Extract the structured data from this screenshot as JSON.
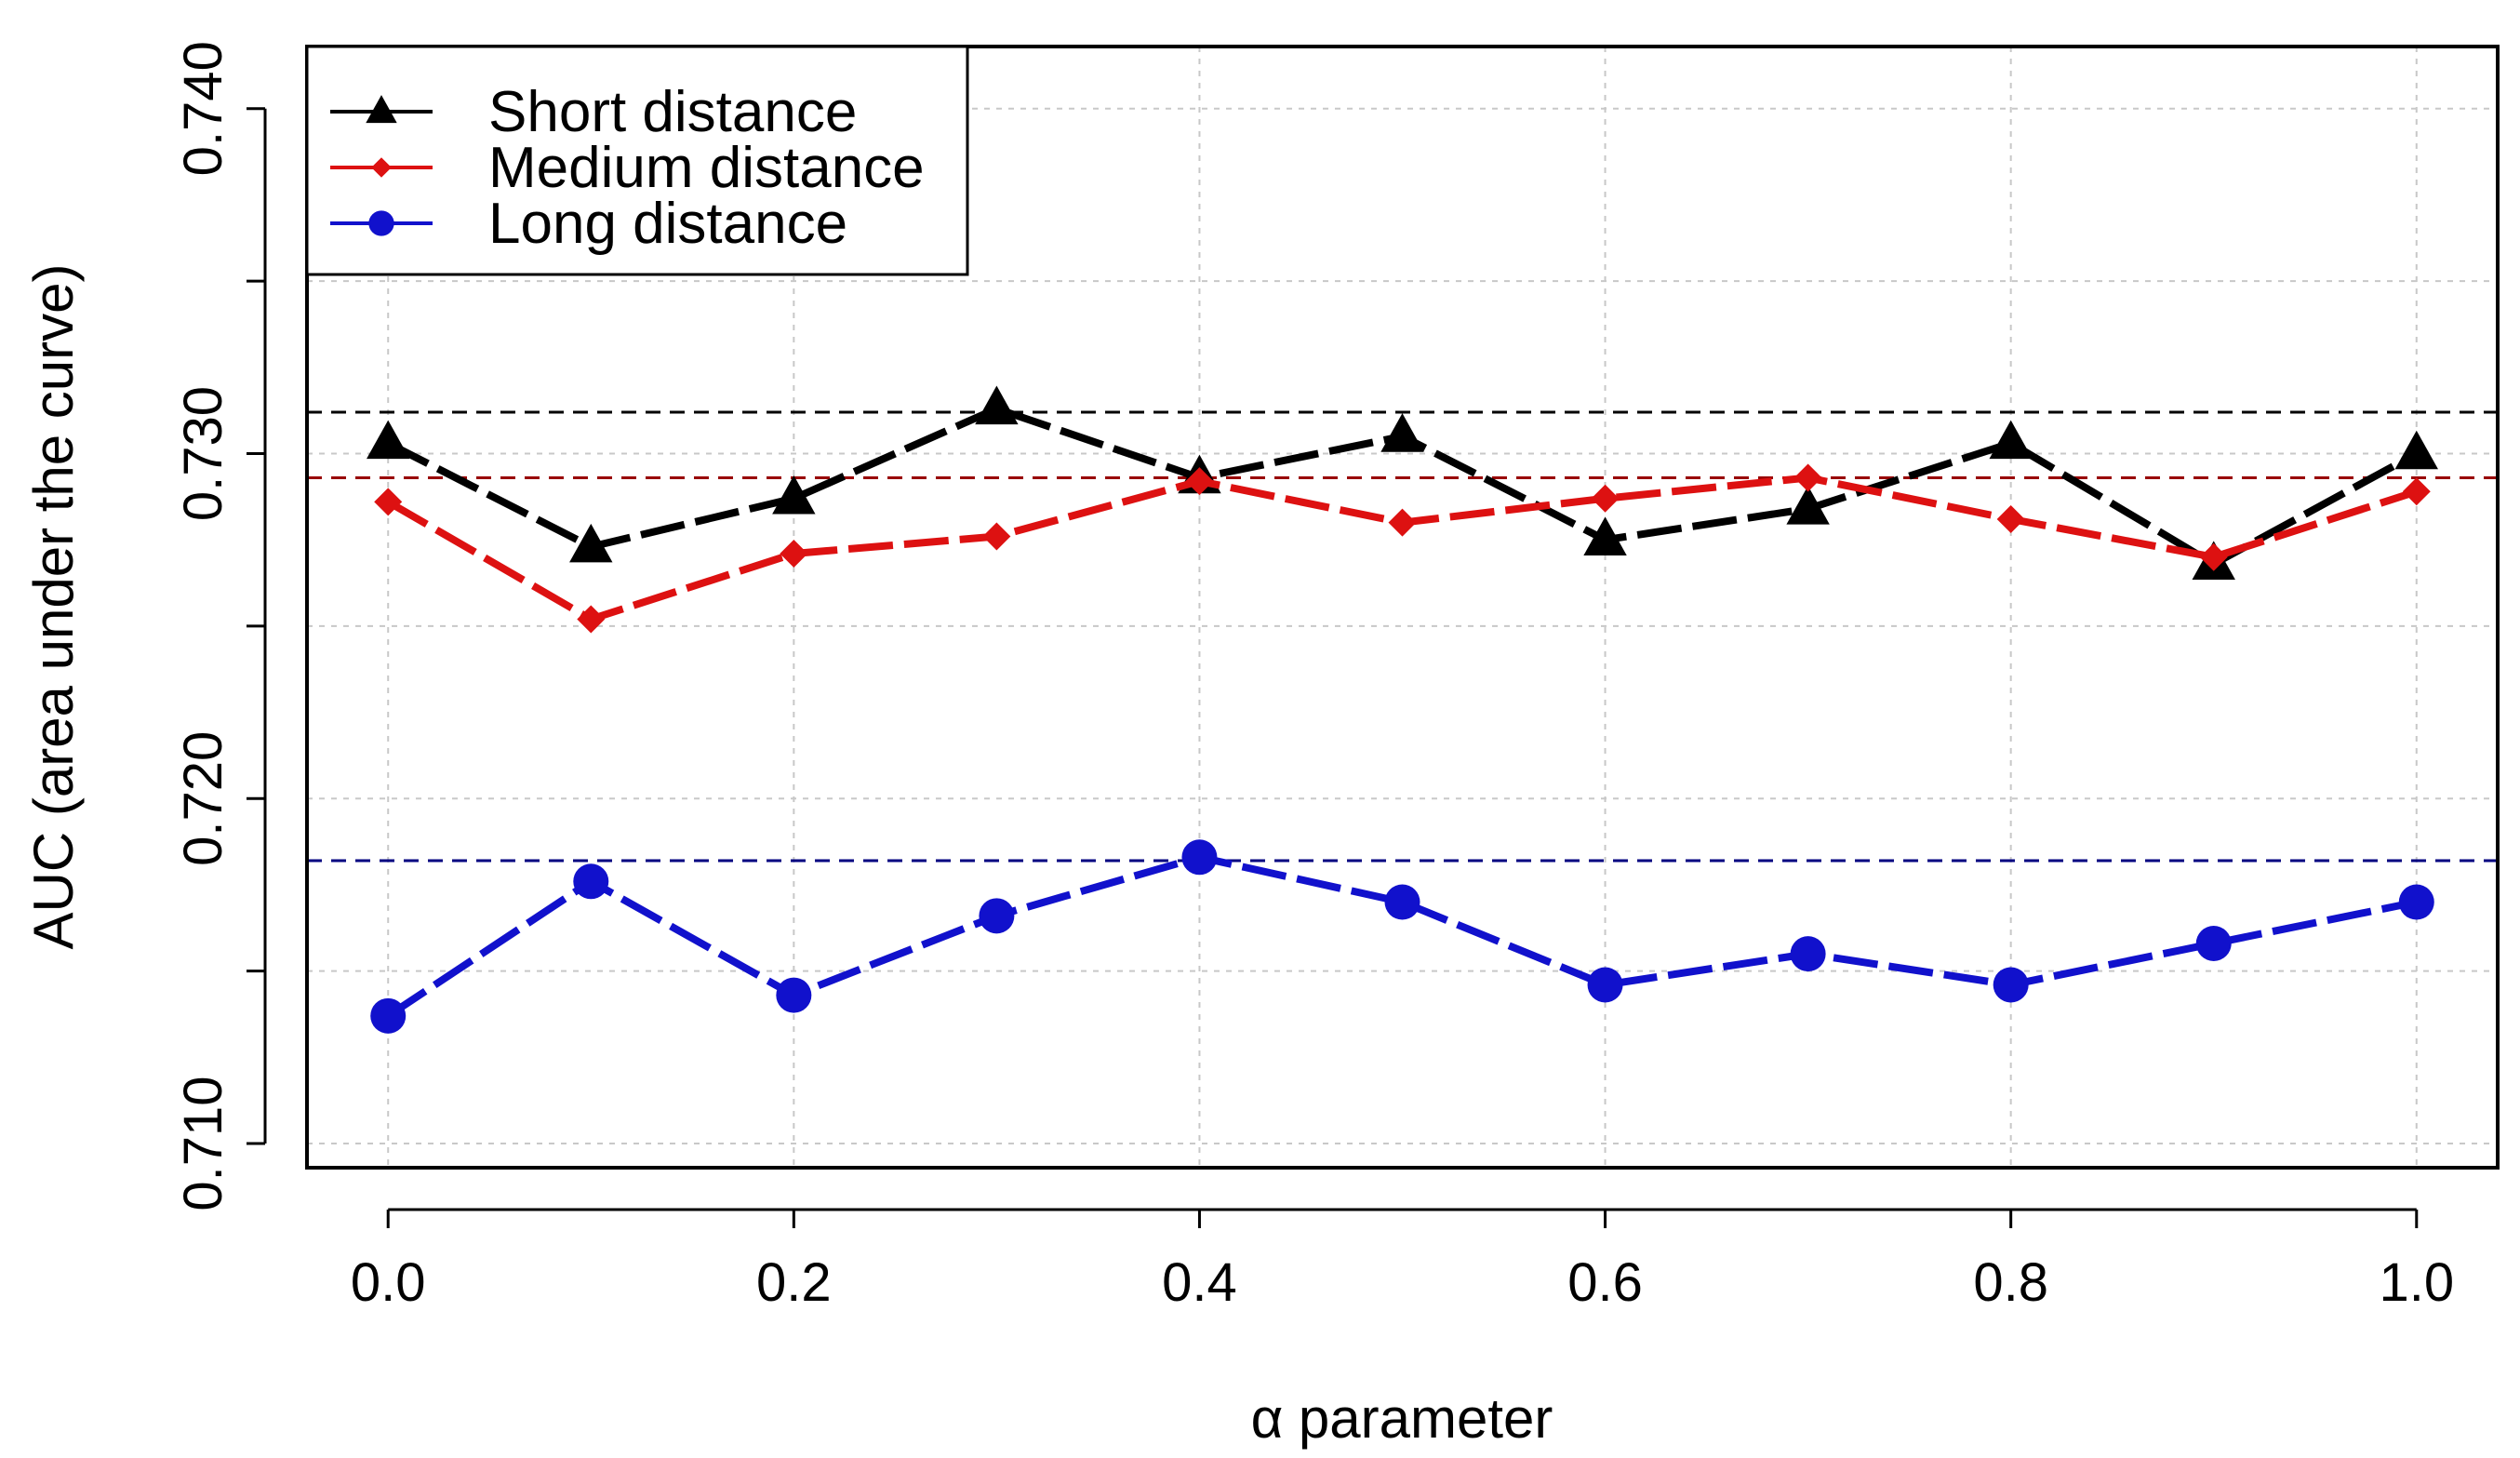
{
  "chart_data": {
    "type": "line",
    "title": "",
    "xlabel": "α parameter",
    "ylabel": "AUC (area under the curve)",
    "x": [
      0.0,
      0.1,
      0.2,
      0.3,
      0.4,
      0.5,
      0.6,
      0.7,
      0.8,
      0.9,
      1.0
    ],
    "xlim": [
      -0.04,
      1.04
    ],
    "ylim": [
      0.7093,
      0.7418
    ],
    "x_ticks": [
      0.0,
      0.2,
      0.4,
      0.6,
      0.8,
      1.0
    ],
    "x_tick_labels": [
      "0.0",
      "0.2",
      "0.4",
      "0.6",
      "0.8",
      "1.0"
    ],
    "y_ticks": [
      0.71,
      0.715,
      0.72,
      0.725,
      0.73,
      0.735,
      0.74
    ],
    "y_tick_labels": [
      "0.710",
      "",
      "0.720",
      "",
      "0.730",
      "",
      "0.740"
    ],
    "grid": true,
    "legend_position": "top-left",
    "series": [
      {
        "name": "Short distance",
        "color": "#000000",
        "marker": "triangle",
        "values": [
          0.7303,
          0.7273,
          0.7287,
          0.7313,
          0.7293,
          0.7305,
          0.7275,
          0.7284,
          0.7303,
          0.7268,
          0.73
        ],
        "reference_line": 0.7312
      },
      {
        "name": "Medium distance",
        "color": "#dd1111",
        "marker": "diamond",
        "values": [
          0.7286,
          0.7252,
          0.7271,
          0.7276,
          0.7292,
          0.728,
          0.7287,
          0.7293,
          0.7281,
          0.727,
          0.7289
        ],
        "reference_line": 0.7293
      },
      {
        "name": "Long distance",
        "color": "#1111cc",
        "marker": "circle",
        "values": [
          0.7137,
          0.7176,
          0.7143,
          0.7166,
          0.7183,
          0.717,
          0.7146,
          0.7155,
          0.7146,
          0.7158,
          0.717
        ],
        "reference_line": 0.7182
      }
    ]
  }
}
